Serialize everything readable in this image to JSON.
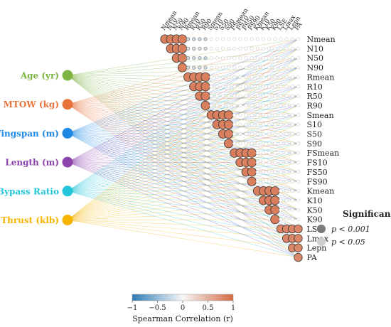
{
  "chart_data": {
    "type": "heatmap",
    "variables": [
      "Nmean",
      "N10",
      "N50",
      "N90",
      "Rmean",
      "R10",
      "R50",
      "R90",
      "Smean",
      "S10",
      "S50",
      "S90",
      "FSmean",
      "FS10",
      "FS50",
      "FS90",
      "Kmean",
      "K10",
      "K50",
      "K90",
      "LSE",
      "Lmax",
      "Lepn",
      "PA"
    ],
    "predictors": [
      {
        "name": "Age (yr)",
        "color": "#7cb342"
      },
      {
        "name": "MTOW (kg)",
        "color": "#e8743b"
      },
      {
        "name": "Wingspan (m)",
        "color": "#1e88e5"
      },
      {
        "name": "Length (m)",
        "color": "#8e44ad"
      },
      {
        "name": "Bypass Ratio",
        "color": "#26c6da"
      },
      {
        "name": "Thrust (klb)",
        "color": "#f4b400"
      }
    ],
    "groups": [
      {
        "members": [
          "Nmean",
          "N10",
          "N50",
          "N90"
        ],
        "value": 0.85,
        "cross_rows": [
          0,
          1,
          2,
          3
        ],
        "cross_values": [
          0.75,
          0.6,
          0.6,
          0.5
        ]
      },
      {
        "members": [
          "Rmean",
          "R10",
          "R50",
          "R90"
        ],
        "value": 0.85,
        "cross_rows": [
          0,
          1,
          2,
          3
        ],
        "cross_values": [
          -0.2,
          -0.15,
          -0.2,
          -0.15
        ]
      },
      {
        "members": [
          "Smean",
          "S10",
          "S50",
          "S90"
        ],
        "value": 0.85,
        "cross_rows": [],
        "cross_values": []
      },
      {
        "members": [
          "FSmean",
          "FS10",
          "FS50",
          "FS90"
        ],
        "value": 0.85,
        "cross_rows": [],
        "cross_values": []
      },
      {
        "members": [
          "Kmean",
          "K10",
          "K50",
          "K90"
        ],
        "value": 0.85,
        "cross_rows": [],
        "cross_values": []
      },
      {
        "members": [
          "LSE",
          "Lmax",
          "Lepn",
          "PA"
        ],
        "value": 0.8,
        "cross_rows": [],
        "cross_values": []
      }
    ],
    "colorbar": {
      "label": "Spearman Correlation (r)",
      "ticks": [
        "−1",
        "−0.5",
        "0",
        "0.5",
        "1"
      ],
      "min": -1,
      "max": 1
    },
    "legend": {
      "title": "Significance",
      "items": [
        "p < 0.001",
        "p < 0.05"
      ]
    }
  },
  "colors": {
    "positive": "#d46a43",
    "negative": "#2c7bb6",
    "neutral": "#f7f7f7"
  }
}
